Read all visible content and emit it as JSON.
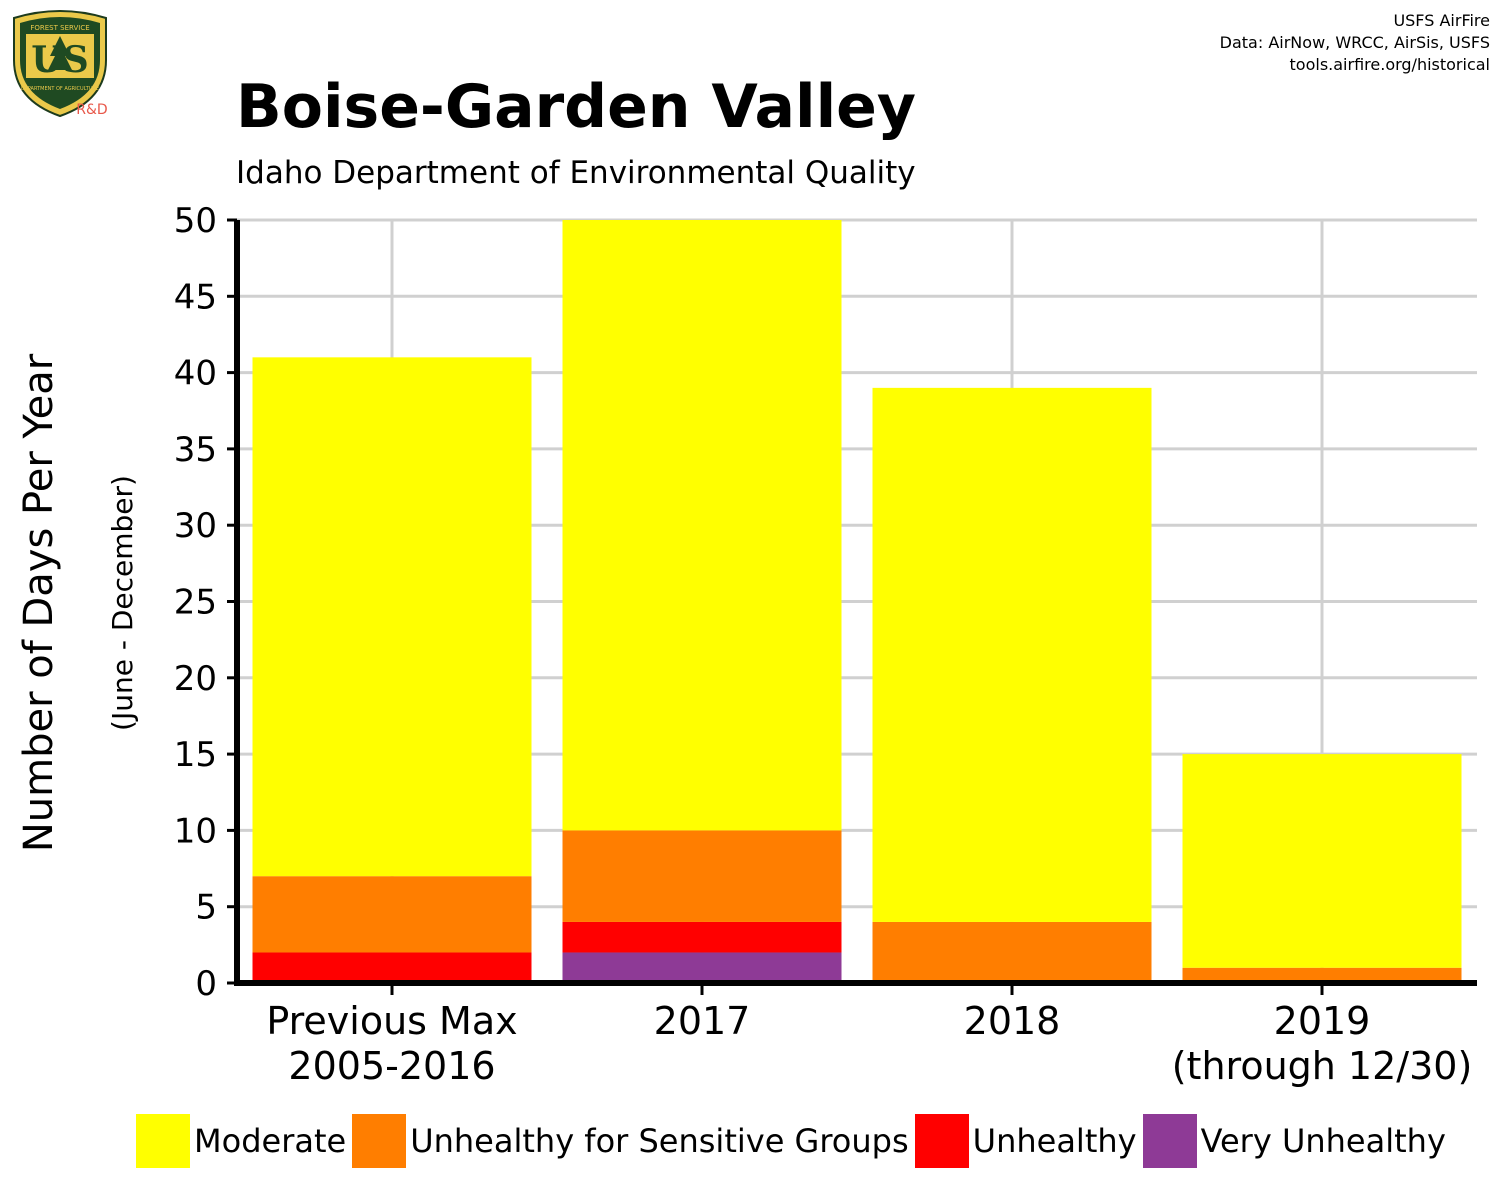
{
  "header": {
    "logo": {
      "icon": "usda-forest-service-shield-icon",
      "top_text": "FOREST SERVICE",
      "center_text": "US",
      "bottom_text": "DEPARTMENT OF AGRICULTURE",
      "badge": "R&D"
    },
    "credits": [
      "USFS AirFire",
      "Data: AirNow, WRCC, AirSis, USFS",
      "tools.airfire.org/historical"
    ]
  },
  "chart_data": {
    "type": "bar",
    "stacked": true,
    "title": "Boise-Garden Valley",
    "subtitle": "Idaho Department of Environmental Quality",
    "ylabel": "Number of Days Per Year",
    "ylabel_sub": "(June - December)",
    "ylim": [
      0,
      50
    ],
    "yticks": [
      0,
      5,
      10,
      15,
      20,
      25,
      30,
      35,
      40,
      45,
      50
    ],
    "grid": true,
    "legend_position": "bottom",
    "categories": [
      [
        "Previous Max",
        "2005-2016"
      ],
      [
        "2017"
      ],
      [
        "2018"
      ],
      [
        "2019",
        "(through 12/30)"
      ]
    ],
    "series": [
      {
        "name": "Very Unhealthy",
        "color": "#8e3a96",
        "values": [
          0,
          2,
          0,
          0
        ]
      },
      {
        "name": "Unhealthy",
        "color": "#ff0000",
        "values": [
          2,
          2,
          0,
          0
        ]
      },
      {
        "name": "Unhealthy for Sensitive Groups",
        "color": "#ff7e00",
        "values": [
          5,
          6,
          4,
          1
        ]
      },
      {
        "name": "Moderate",
        "color": "#ffff00",
        "values": [
          34,
          40,
          35,
          14
        ]
      }
    ],
    "legend_order": [
      "Moderate",
      "Unhealthy for Sensitive Groups",
      "Unhealthy",
      "Very Unhealthy"
    ]
  }
}
